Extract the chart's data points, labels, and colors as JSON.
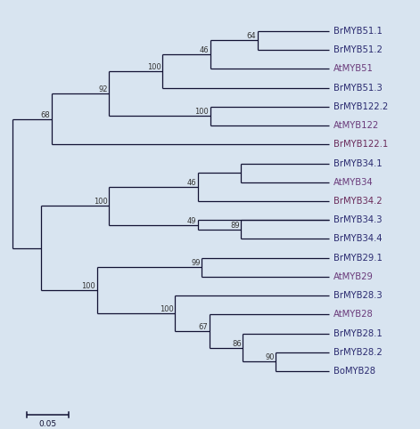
{
  "background_color": "#d8e4f0",
  "line_color": "#111133",
  "fontsize_label": 7.2,
  "fontsize_bootstrap": 6.0,
  "scale_bar_label": "0.05",
  "taxa": [
    "BrMYB51.1",
    "BrMYB51.2",
    "AtMYB51",
    "BrMYB51.3",
    "BrMYB122.2",
    "AtMYB122",
    "BrMYB122.1",
    "BrMYB34.1",
    "AtMYB34",
    "BrMYB34.2",
    "BrMYB34.3",
    "BrMYB34.4",
    "BrMYB29.1",
    "AtMYB29",
    "BrMYB28.3",
    "AtMYB28",
    "BrMYB28.1",
    "BrMYB28.2",
    "BoMYB28"
  ],
  "taxa_colors": [
    "#2a2a70",
    "#2a2a70",
    "#6a3a7a",
    "#2a2a70",
    "#2a2a70",
    "#6a3a7a",
    "#6a2a5a",
    "#2a2a70",
    "#6a3a7a",
    "#6a2a5a",
    "#2a2a70",
    "#2a2a70",
    "#2a2a70",
    "#6a3a7a",
    "#2a2a70",
    "#6a3a7a",
    "#2a2a70",
    "#2a2a70",
    "#2a2a70"
  ]
}
